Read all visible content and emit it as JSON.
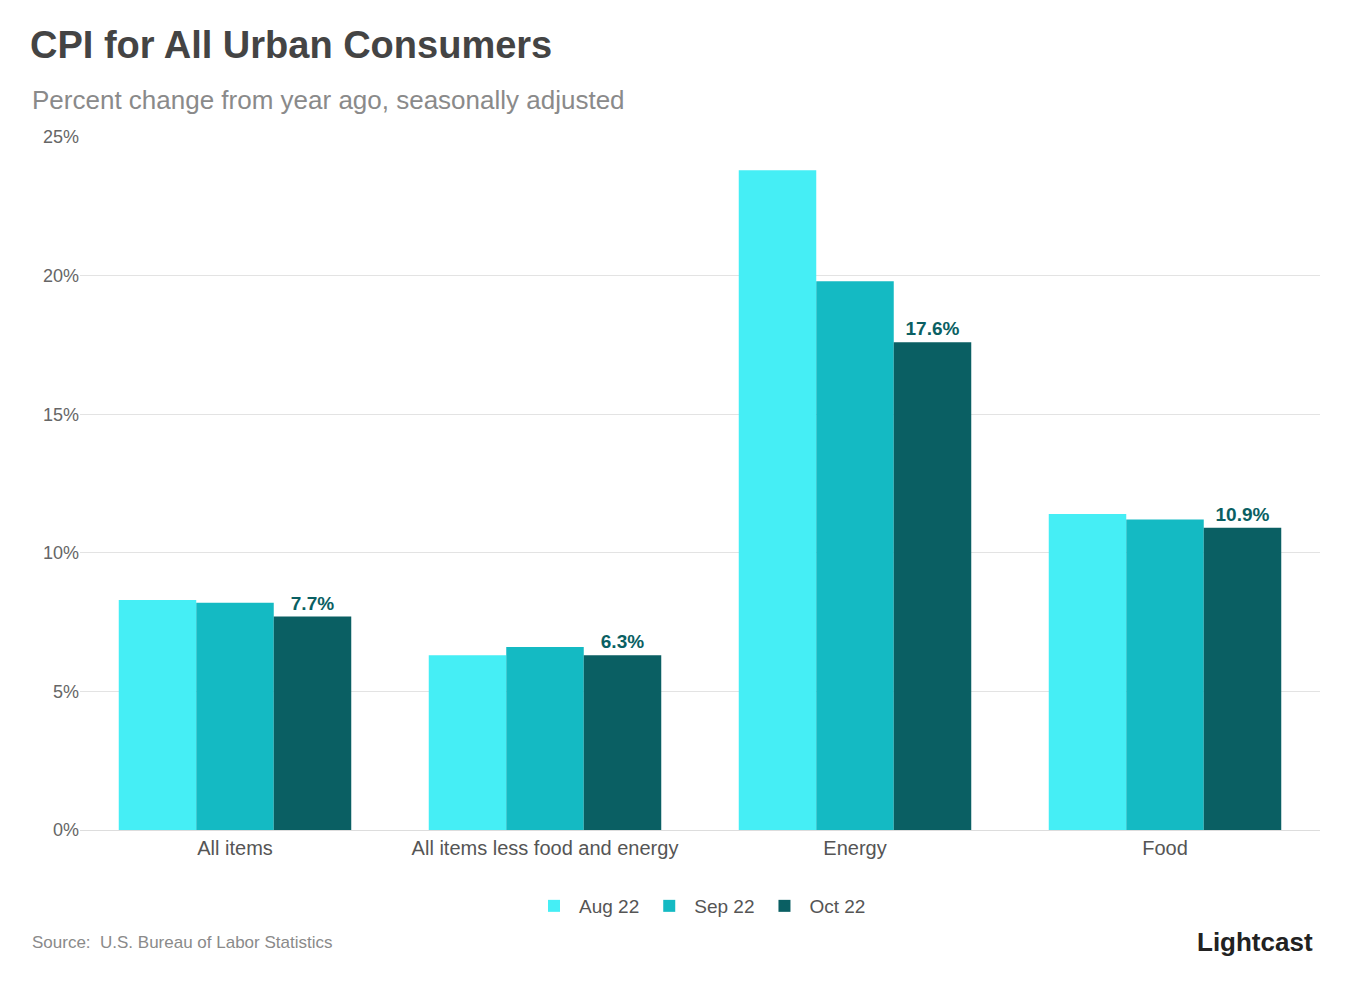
{
  "chart_data": {
    "type": "bar",
    "title": "CPI for All Urban Consumers",
    "subtitle": "Percent change from year ago, seasonally adjusted",
    "source": "Source:  U.S. Bureau of Labor Statistics",
    "brand": "Lightcast",
    "categories": [
      "All items",
      "All items less food and energy",
      "Energy",
      "Food"
    ],
    "series": [
      {
        "name": "Aug 22",
        "color": "#45EEF5",
        "values": [
          8.3,
          6.3,
          23.8,
          11.4
        ]
      },
      {
        "name": "Sep 22",
        "color": "#14BAC3",
        "values": [
          8.2,
          6.6,
          19.8,
          11.2
        ]
      },
      {
        "name": "Oct 22",
        "color": "#0A5F63",
        "values": [
          7.7,
          6.3,
          17.6,
          10.9
        ],
        "value_labels": [
          "7.7%",
          "6.3%",
          "17.6%",
          "10.9%"
        ]
      }
    ],
    "ylim": [
      0,
      25
    ],
    "yticks": [
      {
        "value": 0,
        "label": "0%"
      },
      {
        "value": 5,
        "label": "5%"
      },
      {
        "value": 10,
        "label": "10%"
      },
      {
        "value": 15,
        "label": "15%"
      },
      {
        "value": 20,
        "label": "20%"
      },
      {
        "value": 25,
        "label": "25%"
      }
    ],
    "grid": true,
    "legend": "bottom"
  }
}
